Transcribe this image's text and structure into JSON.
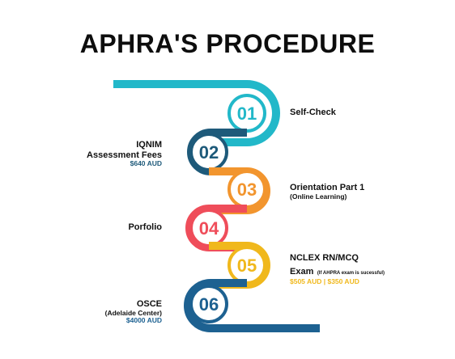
{
  "title": "APHRA'S PROCEDURE",
  "colors": {
    "teal": "#22b8c9",
    "navy": "#1e5a7a",
    "orange": "#f2952e",
    "red": "#ef4d5a",
    "yellow": "#f0b81c",
    "darkblue": "#1d6191"
  },
  "steps": [
    {
      "number": "01",
      "label": "Self-Check"
    },
    {
      "number": "02",
      "label_line1": "IQNIM",
      "label_line2": "Assessment Fees",
      "price": "$640 AUD"
    },
    {
      "number": "03",
      "label": "Orientation Part 1",
      "sub": "(Online Learning)"
    },
    {
      "number": "04",
      "label": "Porfolio"
    },
    {
      "number": "05",
      "label_line1": "NCLEX RN/MCQ",
      "label_line2": "Exam",
      "note": "(If AHPRA exam is sucessful)",
      "price": "$505 AUD | $350 AUD"
    },
    {
      "number": "06",
      "label": "OSCE",
      "sub": "(Adelaide Center)",
      "price": "$4000 AUD"
    }
  ]
}
